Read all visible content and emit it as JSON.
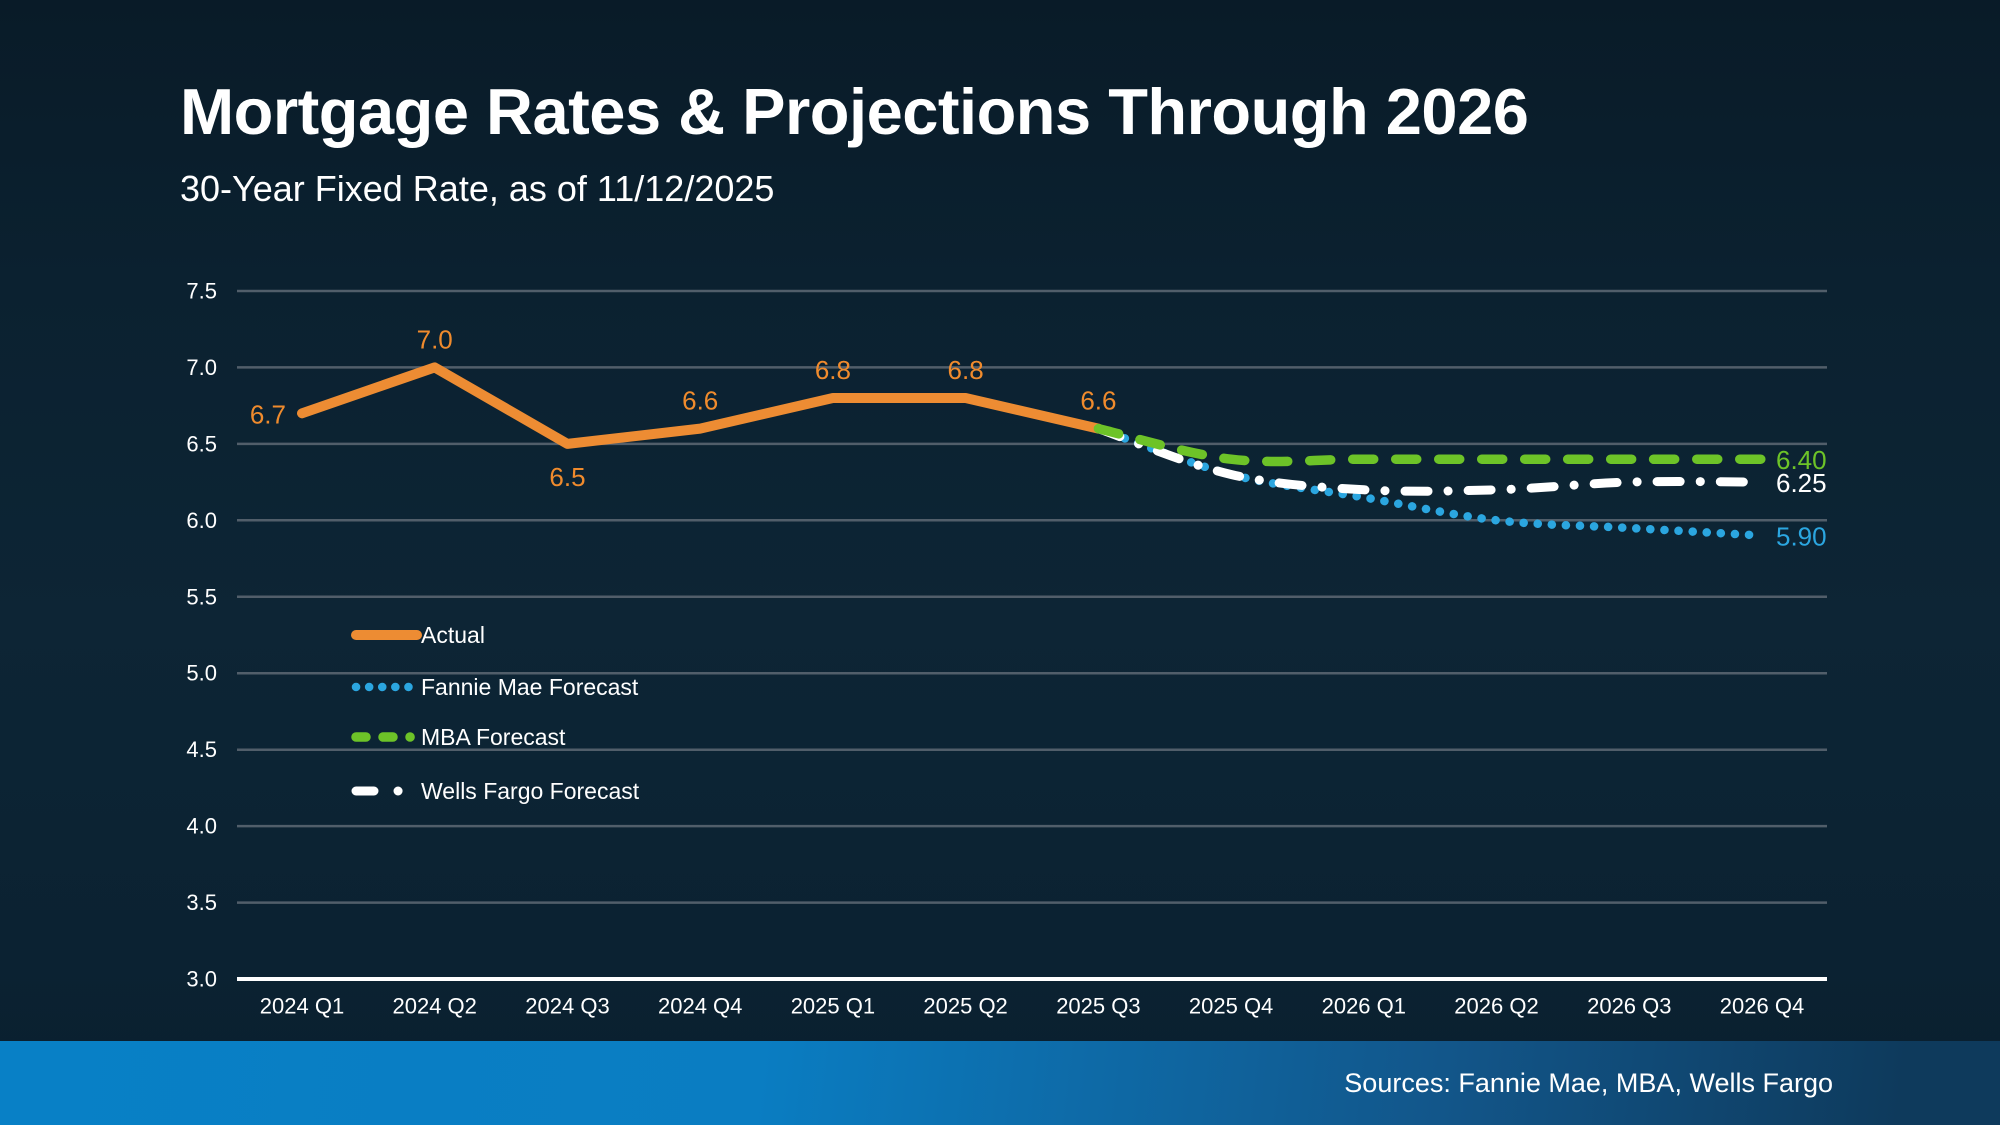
{
  "slide": {
    "title": "Mortgage Rates & Projections Through 2026",
    "subtitle": "30-Year Fixed Rate, as of 11/12/2025",
    "footer_sources": "Sources: Fannie Mae, MBA, Wells Fargo"
  },
  "colors": {
    "background": "#0C2434",
    "gridline": "#515E6A",
    "axis_line": "#FFFFFF",
    "tick_text": "#FFFFFF",
    "legend_text": "#FFFFFF",
    "actual": "#ED8C33",
    "actual_label": "#F08B2D",
    "fannie_mae": "#2BA6E0",
    "mba": "#6DC328",
    "wells_fargo": "#FFFFFF",
    "footer_gradient_left": "#0880C6",
    "footer_gradient_right": "#0E3A5C"
  },
  "chart_data": {
    "type": "line",
    "title": "Mortgage Rates & Projections Through 2026",
    "subtitle": "30-Year Fixed Rate, as of 11/12/2025",
    "xlabel": "",
    "ylabel": "",
    "ylim": [
      3.0,
      7.5
    ],
    "ytick_step": 0.5,
    "ytick_labels": [
      "7.5",
      "7.0",
      "6.5",
      "6.0",
      "5.5",
      "5.0",
      "4.5",
      "4.0",
      "3.5",
      "3.0"
    ],
    "grid": "horizontal gridlines only",
    "legend_position": "inside-left-middle",
    "categories": [
      "2024 Q1",
      "2024 Q2",
      "2024 Q3",
      "2024 Q4",
      "2025 Q1",
      "2025 Q2",
      "2025 Q3",
      "2025 Q4",
      "2026 Q1",
      "2026 Q2",
      "2026 Q3",
      "2026 Q4"
    ],
    "series": [
      {
        "name": "Actual",
        "style": "solid",
        "color_key": "actual",
        "smooth": false,
        "values": [
          6.7,
          7.0,
          6.5,
          6.6,
          6.8,
          6.8,
          6.6,
          null,
          null,
          null,
          null,
          null
        ],
        "point_labels": [
          {
            "index": 0,
            "text": "6.7",
            "position": "left"
          },
          {
            "index": 1,
            "text": "7.0",
            "position": "above"
          },
          {
            "index": 2,
            "text": "6.5",
            "position": "below"
          },
          {
            "index": 3,
            "text": "6.6",
            "position": "above"
          },
          {
            "index": 4,
            "text": "6.8",
            "position": "above"
          },
          {
            "index": 5,
            "text": "6.8",
            "position": "above"
          },
          {
            "index": 6,
            "text": "6.6",
            "position": "above"
          }
        ]
      },
      {
        "name": "Fannie Mae Forecast",
        "style": "dotted",
        "color_key": "fannie_mae",
        "smooth": true,
        "values": [
          null,
          null,
          null,
          null,
          null,
          null,
          6.6,
          6.3,
          6.15,
          6.0,
          5.95,
          5.9
        ],
        "end_label": "5.90"
      },
      {
        "name": "MBA Forecast",
        "style": "dashed",
        "color_key": "mba",
        "smooth": true,
        "values": [
          null,
          null,
          null,
          null,
          null,
          null,
          6.6,
          6.4,
          6.4,
          6.4,
          6.4,
          6.4
        ],
        "end_label": "6.40"
      },
      {
        "name": "Wells Fargo Forecast",
        "style": "dash-dot",
        "color_key": "wells_fargo",
        "smooth": true,
        "values": [
          null,
          null,
          null,
          null,
          null,
          null,
          6.6,
          6.3,
          6.2,
          6.2,
          6.25,
          6.25
        ],
        "end_label": "6.25"
      }
    ],
    "draw_order": [
      0,
      1,
      3,
      2
    ]
  }
}
